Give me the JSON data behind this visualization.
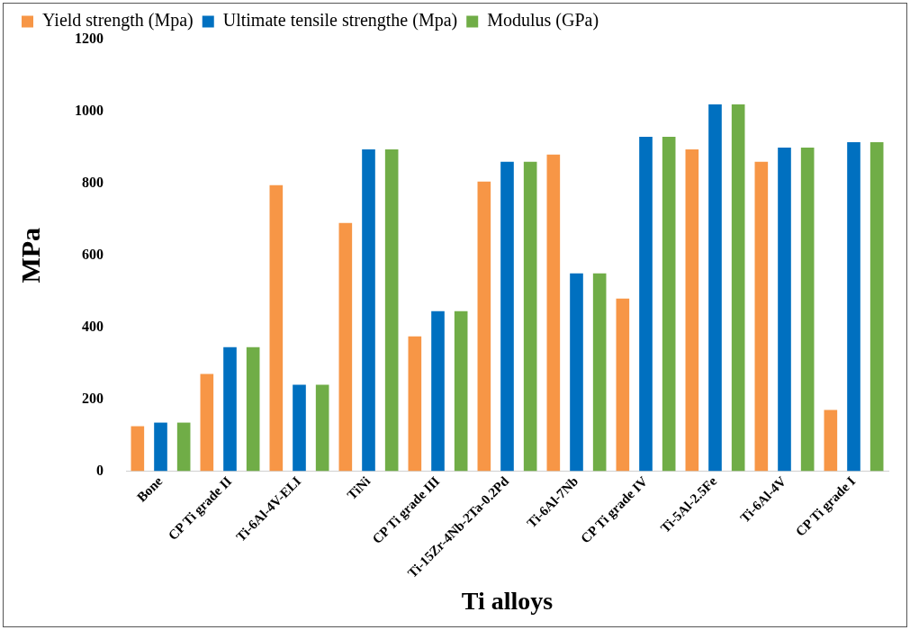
{
  "chart_data": {
    "type": "bar",
    "xlabel": "Ti alloys",
    "ylabel": "MPa",
    "categories": [
      "Bone",
      "CP Ti grade II",
      "Ti-6Al-4V-ELI",
      "TiNi",
      "CP Ti grade III",
      "Ti-15Zr-4Nb-2Ta-0.2Pd",
      "Ti-6Al-7Nb",
      "CP Ti grade IV",
      "Ti-5Al-2.5Fe",
      "Ti-6Al-4V",
      "CP Ti grade I"
    ],
    "series": [
      {
        "name": "Yield strength (Mpa)",
        "color": "#f79646",
        "values": [
          125,
          270,
          795,
          690,
          375,
          805,
          880,
          480,
          895,
          860,
          170
        ]
      },
      {
        "name": "Ultimate tensile strengthe (Mpa)",
        "color": "#0070c0",
        "values": [
          135,
          345,
          240,
          895,
          445,
          860,
          550,
          930,
          1020,
          900,
          915
        ]
      },
      {
        "name": "Modulus (GPa)",
        "color": "#70ad47",
        "values": [
          135,
          345,
          240,
          895,
          445,
          860,
          550,
          930,
          1020,
          900,
          915
        ]
      }
    ],
    "ylim": [
      0,
      1200
    ],
    "yticks": [
      0,
      200,
      400,
      600,
      800,
      1000,
      1200
    ],
    "legend": "top",
    "grid": false
  }
}
